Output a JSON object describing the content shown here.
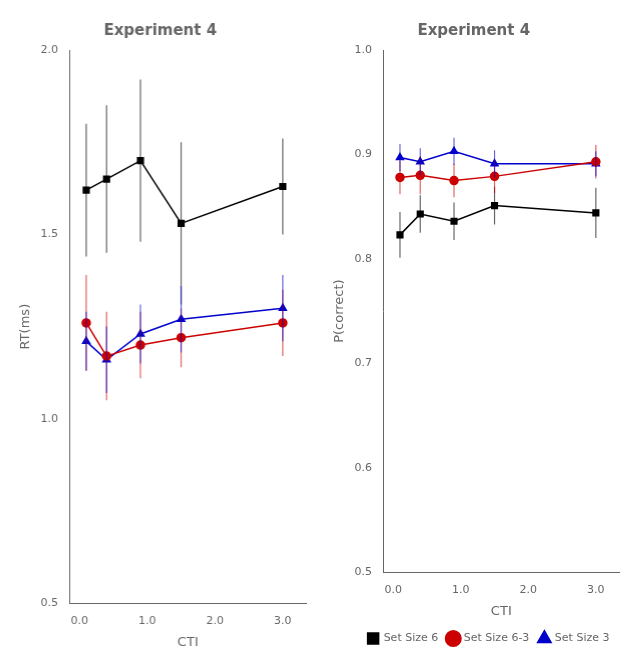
{
  "chart_data": [
    {
      "type": "line",
      "title": "Experiment 4",
      "x_label": "CTI",
      "y_label": "RT(ms)",
      "x": [
        0.1,
        0.4,
        0.9,
        1.5,
        3.0
      ],
      "series": [
        {
          "name": "Set Size 6",
          "color": "#000000",
          "marker": "square",
          "values": [
            1.62,
            1.65,
            1.7,
            1.53,
            1.63
          ],
          "errors": [
            0.18,
            0.2,
            0.22,
            0.22,
            0.13
          ]
        },
        {
          "name": "Set Size 6-3",
          "color": "#cc0000",
          "marker": "circle",
          "values": [
            1.26,
            1.17,
            1.2,
            1.22,
            1.26
          ],
          "errors": [
            0.13,
            0.12,
            0.09,
            0.08,
            0.09
          ]
        },
        {
          "name": "Set Size 3",
          "color": "#0000cc",
          "marker": "triangle",
          "values": [
            1.21,
            1.16,
            1.23,
            1.27,
            1.3
          ],
          "errors": [
            0.08,
            0.09,
            0.08,
            0.09,
            0.09
          ]
        }
      ],
      "xlim": [
        -0.15,
        3.35
      ],
      "xticks": [
        {
          "value": 0.0,
          "label": "0.0"
        },
        {
          "value": 1.0,
          "label": "1.0"
        },
        {
          "value": 2.0,
          "label": "2.0"
        },
        {
          "value": 3.0,
          "label": "3.0"
        }
      ],
      "ylim": [
        0.5,
        2.0
      ],
      "yticks": [
        0.5,
        {
          "value": 1.0,
          "label": "1.0"
        },
        1.5,
        {
          "value": 2.0,
          "label": "2.0"
        }
      ],
      "grid": false
    },
    {
      "type": "line",
      "title": "Experiment 4",
      "x_label": "CTI",
      "y_label": "P(correct)",
      "x": [
        0.1,
        0.4,
        0.9,
        1.5,
        3.0
      ],
      "series": [
        {
          "name": "Set Size 6",
          "color": "#000000",
          "marker": "square",
          "values": [
            0.823,
            0.843,
            0.836,
            0.851,
            0.844
          ],
          "errors": [
            0.022,
            0.018,
            0.018,
            0.018,
            0.024
          ]
        },
        {
          "name": "Set Size 6-3",
          "color": "#cc0000",
          "marker": "circle",
          "values": [
            0.878,
            0.88,
            0.875,
            0.879,
            0.893
          ],
          "errors": [
            0.016,
            0.018,
            0.016,
            0.016,
            0.016
          ]
        },
        {
          "name": "Set Size 3",
          "color": "#0000cc",
          "marker": "triangle",
          "values": [
            0.897,
            0.893,
            0.903,
            0.891,
            0.891
          ],
          "errors": [
            0.013,
            0.013,
            0.013,
            0.013,
            0.012
          ]
        }
      ],
      "xlim": [
        -0.15,
        3.35
      ],
      "xticks": [
        {
          "value": 0.0,
          "label": "0.0"
        },
        {
          "value": 1.0,
          "label": "1.0"
        },
        {
          "value": 2.0,
          "label": "2.0"
        },
        {
          "value": 3.0,
          "label": "3.0"
        }
      ],
      "ylim": [
        0.5,
        1.0
      ],
      "yticks": [
        0.5,
        0.6,
        0.7,
        0.8,
        0.9,
        {
          "value": 1.0,
          "label": "1.0"
        }
      ],
      "grid": false,
      "legend": "lower right"
    }
  ]
}
